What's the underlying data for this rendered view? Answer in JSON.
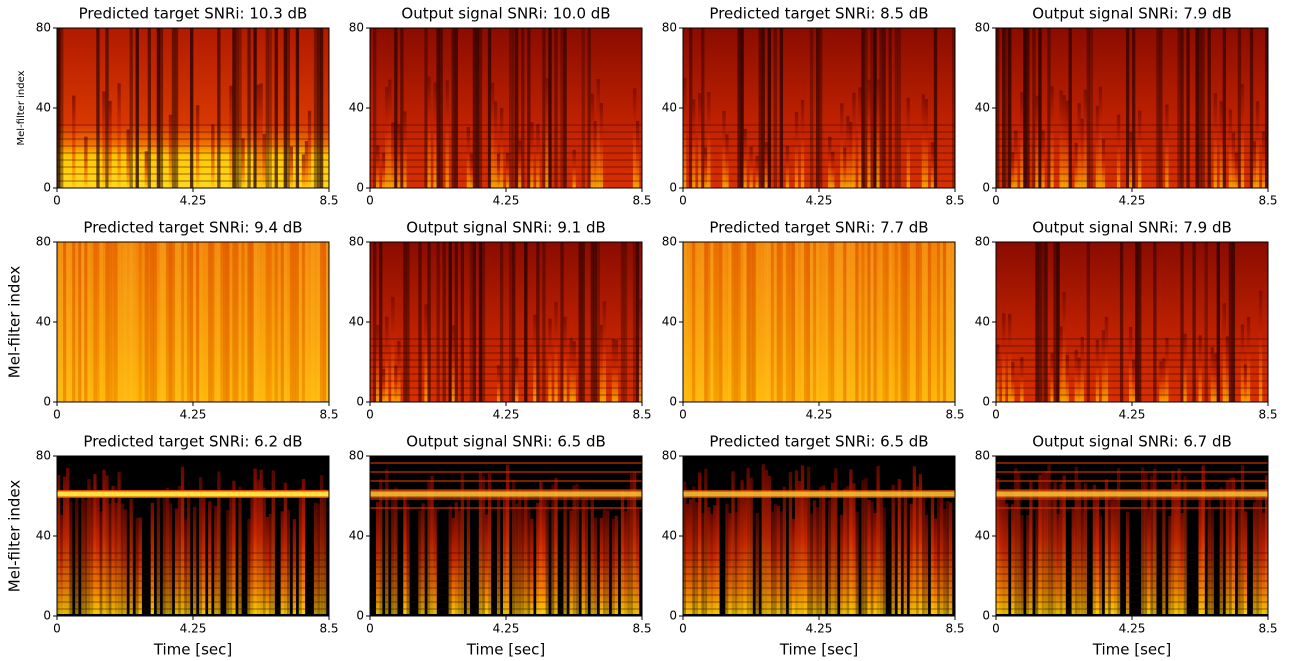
{
  "chart_data": [
    {
      "type": "spectrogram",
      "title": "Predicted target SNRi: 10.3 dB",
      "ylabel": "Mel-filter index",
      "xlim": [
        0,
        8.5
      ],
      "xticks": [
        0,
        4.25,
        8.5
      ],
      "ylim": [
        0,
        80
      ],
      "yticks": [
        0,
        40,
        80
      ]
    },
    {
      "type": "spectrogram",
      "title": "Output signal SNRi: 10.0 dB",
      "xlim": [
        0,
        8.5
      ],
      "xticks": [
        0,
        4.25,
        8.5
      ],
      "ylim": [
        0,
        80
      ],
      "yticks": [
        0,
        40,
        80
      ]
    },
    {
      "type": "spectrogram",
      "title": "Predicted target SNRi: 8.5 dB",
      "xlim": [
        0,
        8.5
      ],
      "xticks": [
        0,
        4.25,
        8.5
      ],
      "ylim": [
        0,
        80
      ],
      "yticks": [
        0,
        40,
        80
      ]
    },
    {
      "type": "spectrogram",
      "title": "Output signal SNRi: 7.9 dB",
      "xlim": [
        0,
        8.5
      ],
      "xticks": [
        0,
        4.25,
        8.5
      ],
      "ylim": [
        0,
        80
      ],
      "yticks": [
        0,
        40,
        80
      ]
    },
    {
      "type": "spectrogram",
      "title": "Predicted target SNRi: 9.4 dB",
      "ylabel": "Mel-filter index",
      "xlim": [
        0,
        8.5
      ],
      "xticks": [
        0,
        4.25,
        8.5
      ],
      "ylim": [
        0,
        80
      ],
      "yticks": [
        0,
        40,
        80
      ]
    },
    {
      "type": "spectrogram",
      "title": "Output signal SNRi: 9.1 dB",
      "xlim": [
        0,
        8.5
      ],
      "xticks": [
        0,
        4.25,
        8.5
      ],
      "ylim": [
        0,
        80
      ],
      "yticks": [
        0,
        40,
        80
      ]
    },
    {
      "type": "spectrogram",
      "title": "Predicted target SNRi: 7.7 dB",
      "xlim": [
        0,
        8.5
      ],
      "xticks": [
        0,
        4.25,
        8.5
      ],
      "ylim": [
        0,
        80
      ],
      "yticks": [
        0,
        40,
        80
      ]
    },
    {
      "type": "spectrogram",
      "title": "Output signal SNRi: 7.9 dB",
      "xlim": [
        0,
        8.5
      ],
      "xticks": [
        0,
        4.25,
        8.5
      ],
      "ylim": [
        0,
        80
      ],
      "yticks": [
        0,
        40,
        80
      ]
    },
    {
      "type": "spectrogram",
      "title": "Predicted target SNRi: 6.2 dB",
      "ylabel": "Mel-filter index",
      "xlabel": "Time [sec]",
      "xlim": [
        0,
        8.5
      ],
      "xticks": [
        0,
        4.25,
        8.5
      ],
      "ylim": [
        0,
        80
      ],
      "yticks": [
        0,
        40,
        80
      ]
    },
    {
      "type": "spectrogram",
      "title": "Output signal SNRi: 6.5 dB",
      "xlabel": "Time [sec]",
      "xlim": [
        0,
        8.5
      ],
      "xticks": [
        0,
        4.25,
        8.5
      ],
      "ylim": [
        0,
        80
      ],
      "yticks": [
        0,
        40,
        80
      ]
    },
    {
      "type": "spectrogram",
      "title": "Predicted target SNRi: 6.5 dB",
      "xlabel": "Time [sec]",
      "xlim": [
        0,
        8.5
      ],
      "xticks": [
        0,
        4.25,
        8.5
      ],
      "ylim": [
        0,
        80
      ],
      "yticks": [
        0,
        40,
        80
      ]
    },
    {
      "type": "spectrogram",
      "title": "Output signal SNRi: 6.7 dB",
      "xlabel": "Time [sec]",
      "xlim": [
        0,
        8.5
      ],
      "xticks": [
        0,
        4.25,
        8.5
      ],
      "ylim": [
        0,
        80
      ],
      "yticks": [
        0,
        40,
        80
      ]
    }
  ]
}
